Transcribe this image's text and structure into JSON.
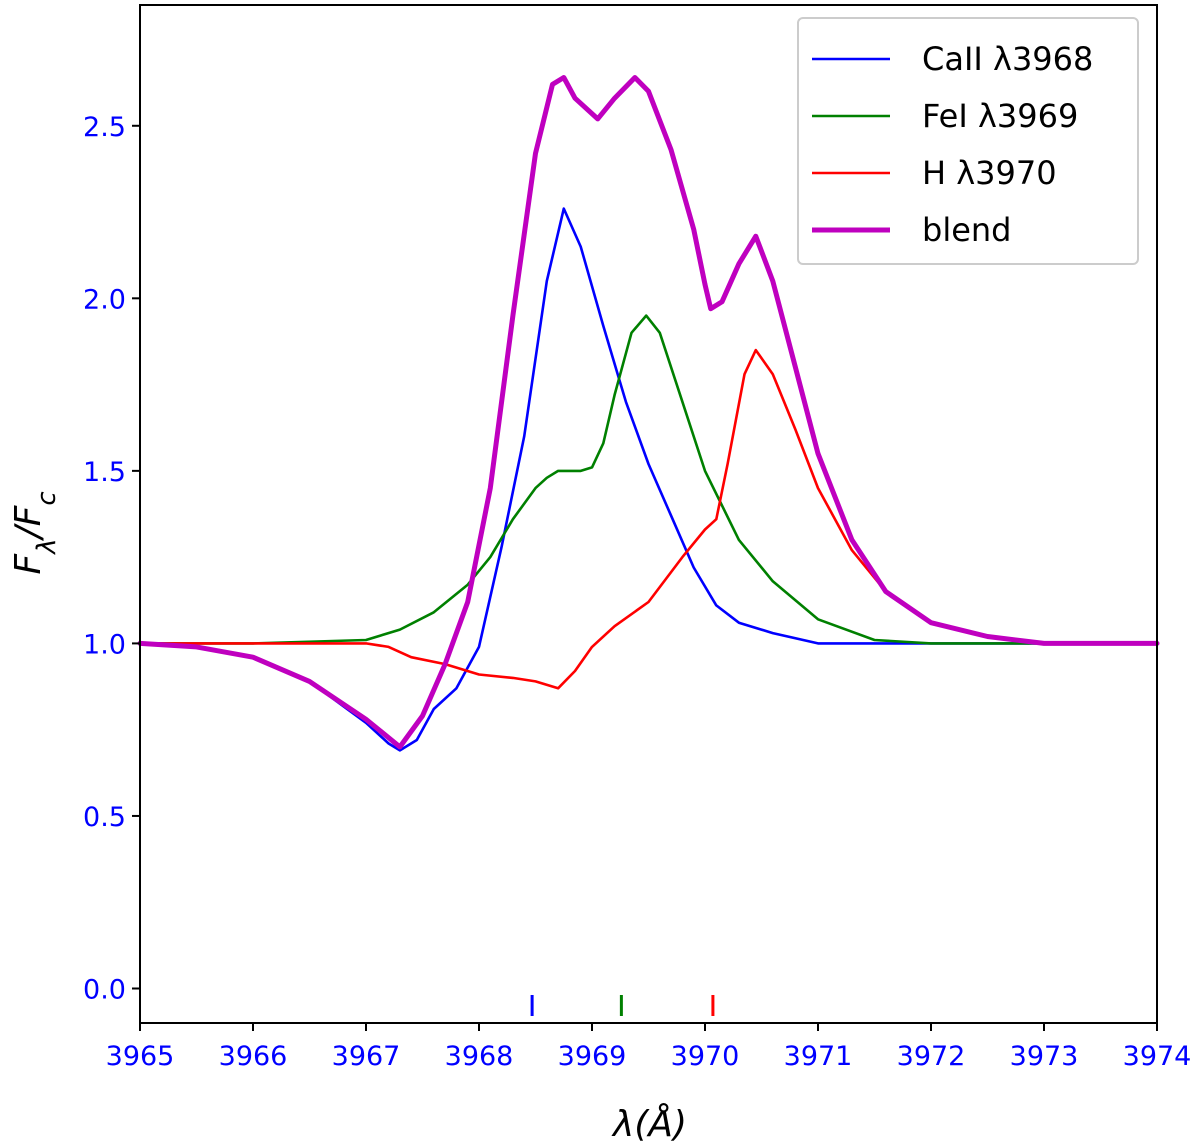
{
  "chart_data": {
    "type": "line",
    "xlabel": "λ(Å)",
    "ylabel": "Fλ/Fc",
    "xlim": [
      3965,
      3974
    ],
    "ylim": [
      -0.1,
      2.85
    ],
    "xticks": [
      "3965",
      "3966",
      "3967",
      "3968",
      "3969",
      "3970",
      "3971",
      "3972",
      "3973",
      "3974"
    ],
    "yticks": [
      "0.0",
      "0.5",
      "1.0",
      "1.5",
      "2.0",
      "2.5"
    ],
    "tick_label_color": "#0000ff",
    "legend_position": "top-right",
    "series": [
      {
        "name": "CaII λ3968",
        "color": "#0000ff",
        "x": [
          3965.0,
          3965.5,
          3966.0,
          3966.5,
          3967.0,
          3967.2,
          3967.3,
          3967.45,
          3967.6,
          3967.8,
          3968.0,
          3968.2,
          3968.4,
          3968.6,
          3968.75,
          3968.9,
          3969.1,
          3969.3,
          3969.5,
          3969.7,
          3969.9,
          3970.1,
          3970.3,
          3970.6,
          3971.0,
          3971.5,
          3972.0,
          3973.0,
          3974.0
        ],
        "y": [
          1.0,
          0.99,
          0.96,
          0.89,
          0.77,
          0.71,
          0.69,
          0.72,
          0.81,
          0.87,
          0.99,
          1.28,
          1.6,
          2.05,
          2.26,
          2.15,
          1.92,
          1.7,
          1.52,
          1.37,
          1.22,
          1.11,
          1.06,
          1.03,
          1.0,
          1.0,
          1.0,
          1.0,
          1.0
        ]
      },
      {
        "name": "FeI λ3969",
        "color": "#008000",
        "x": [
          3965.0,
          3966.0,
          3967.0,
          3967.3,
          3967.6,
          3967.9,
          3968.1,
          3968.3,
          3968.5,
          3968.6,
          3968.7,
          3968.9,
          3969.0,
          3969.1,
          3969.2,
          3969.35,
          3969.48,
          3969.6,
          3969.8,
          3970.0,
          3970.3,
          3970.6,
          3971.0,
          3971.5,
          3972.0,
          3972.5,
          3973.0,
          3974.0
        ],
        "y": [
          1.0,
          1.0,
          1.01,
          1.04,
          1.09,
          1.17,
          1.25,
          1.36,
          1.45,
          1.48,
          1.5,
          1.5,
          1.51,
          1.58,
          1.72,
          1.9,
          1.95,
          1.9,
          1.7,
          1.5,
          1.3,
          1.18,
          1.07,
          1.01,
          1.0,
          1.0,
          1.0,
          1.0
        ]
      },
      {
        "name": "H λ3970",
        "color": "#ff0000",
        "x": [
          3965.0,
          3966.0,
          3967.0,
          3967.2,
          3967.4,
          3967.7,
          3968.0,
          3968.3,
          3968.5,
          3968.7,
          3968.85,
          3969.0,
          3969.2,
          3969.5,
          3969.8,
          3970.0,
          3970.1,
          3970.2,
          3970.35,
          3970.45,
          3970.6,
          3970.8,
          3971.0,
          3971.3,
          3971.6,
          3972.0,
          3972.5,
          3973.0,
          3974.0
        ],
        "y": [
          1.0,
          1.0,
          1.0,
          0.99,
          0.96,
          0.94,
          0.91,
          0.9,
          0.89,
          0.87,
          0.92,
          0.99,
          1.05,
          1.12,
          1.25,
          1.33,
          1.36,
          1.52,
          1.78,
          1.85,
          1.78,
          1.62,
          1.45,
          1.27,
          1.15,
          1.06,
          1.02,
          1.0,
          1.0
        ]
      },
      {
        "name": "blend",
        "color": "#bf00bf",
        "x": [
          3965.0,
          3965.5,
          3966.0,
          3966.5,
          3967.0,
          3967.3,
          3967.5,
          3967.7,
          3967.9,
          3968.1,
          3968.3,
          3968.5,
          3968.65,
          3968.75,
          3968.85,
          3969.05,
          3969.2,
          3969.38,
          3969.5,
          3969.7,
          3969.9,
          3970.0,
          3970.05,
          3970.15,
          3970.3,
          3970.45,
          3970.6,
          3970.8,
          3971.0,
          3971.3,
          3971.6,
          3972.0,
          3972.5,
          3973.0,
          3974.0
        ],
        "y": [
          1.0,
          0.99,
          0.96,
          0.89,
          0.78,
          0.7,
          0.79,
          0.94,
          1.12,
          1.45,
          1.95,
          2.42,
          2.62,
          2.64,
          2.58,
          2.52,
          2.58,
          2.64,
          2.6,
          2.43,
          2.2,
          2.04,
          1.97,
          1.99,
          2.1,
          2.18,
          2.05,
          1.8,
          1.55,
          1.3,
          1.15,
          1.06,
          1.02,
          1.0,
          1.0
        ]
      }
    ],
    "markers": [
      {
        "x": 3968.47,
        "color": "#0000ff"
      },
      {
        "x": 3969.26,
        "color": "#008000"
      },
      {
        "x": 3970.07,
        "color": "#ff0000"
      }
    ]
  }
}
